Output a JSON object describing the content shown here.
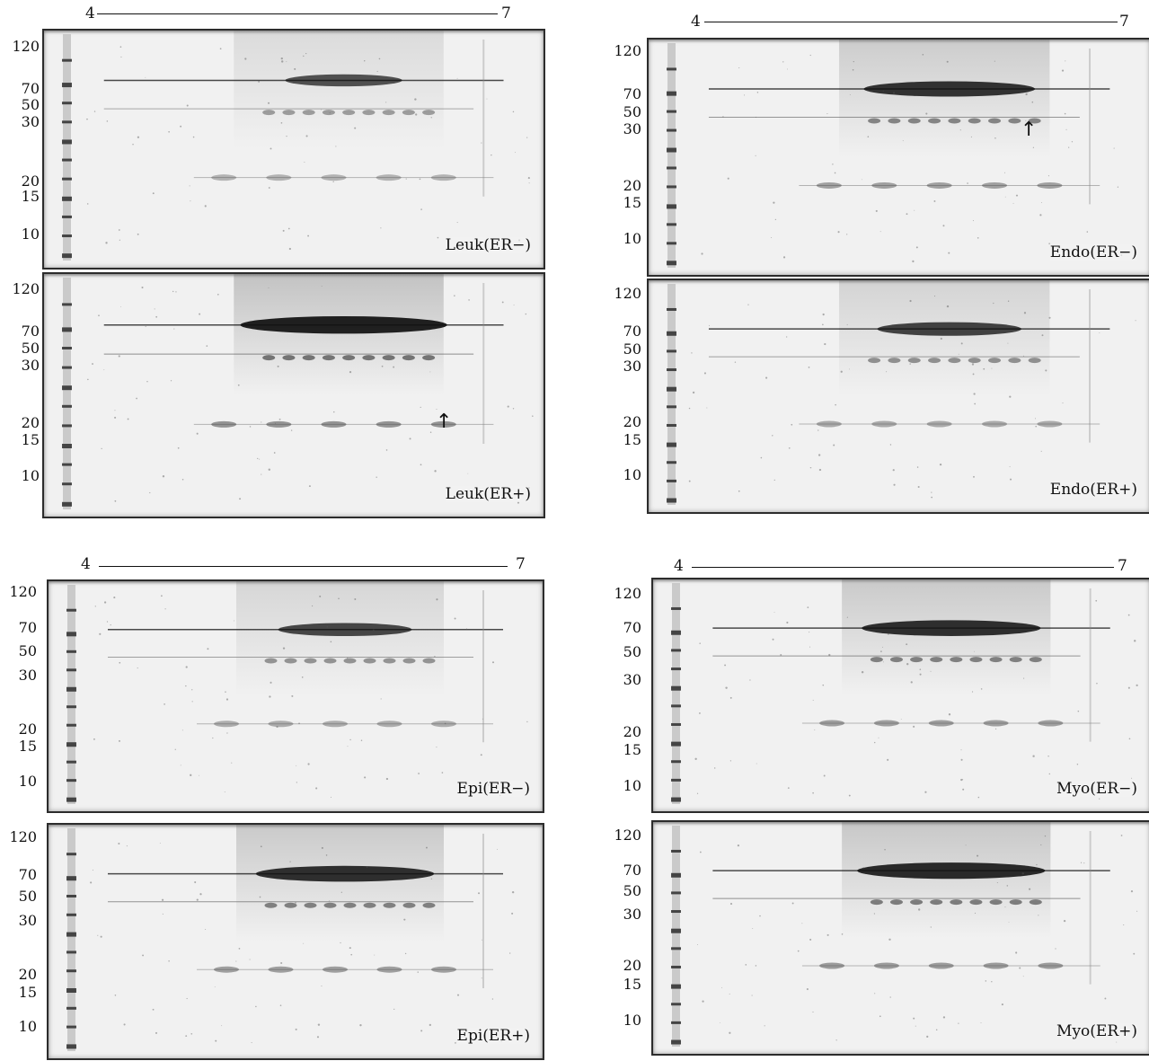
{
  "ph_scale": {
    "start": "4",
    "end": "7"
  },
  "mw_markers": [
    "120",
    "70",
    "50",
    "30",
    "20",
    "15",
    "10"
  ],
  "colors": {
    "gel_background": "#f1f1f1",
    "band": "#111111",
    "ladder": "#222222"
  },
  "panels": [
    {
      "label": "Leuk(ER−)",
      "intensity": 0.45,
      "arrow": false
    },
    {
      "label": "Leuk(ER+)",
      "intensity": 0.95,
      "arrow": true
    },
    {
      "label": "Endo(ER−)",
      "intensity": 0.75,
      "arrow": true
    },
    {
      "label": "Endo(ER+)",
      "intensity": 0.6,
      "arrow": false
    },
    {
      "label": "Epi(ER−)",
      "intensity": 0.55,
      "arrow": false
    },
    {
      "label": "Epi(ER+)",
      "intensity": 0.8,
      "arrow": false
    },
    {
      "label": "Myo(ER−)",
      "intensity": 0.8,
      "arrow": false
    },
    {
      "label": "Myo(ER+)",
      "intensity": 0.85,
      "arrow": false
    }
  ],
  "arrow_glyph": "↑"
}
